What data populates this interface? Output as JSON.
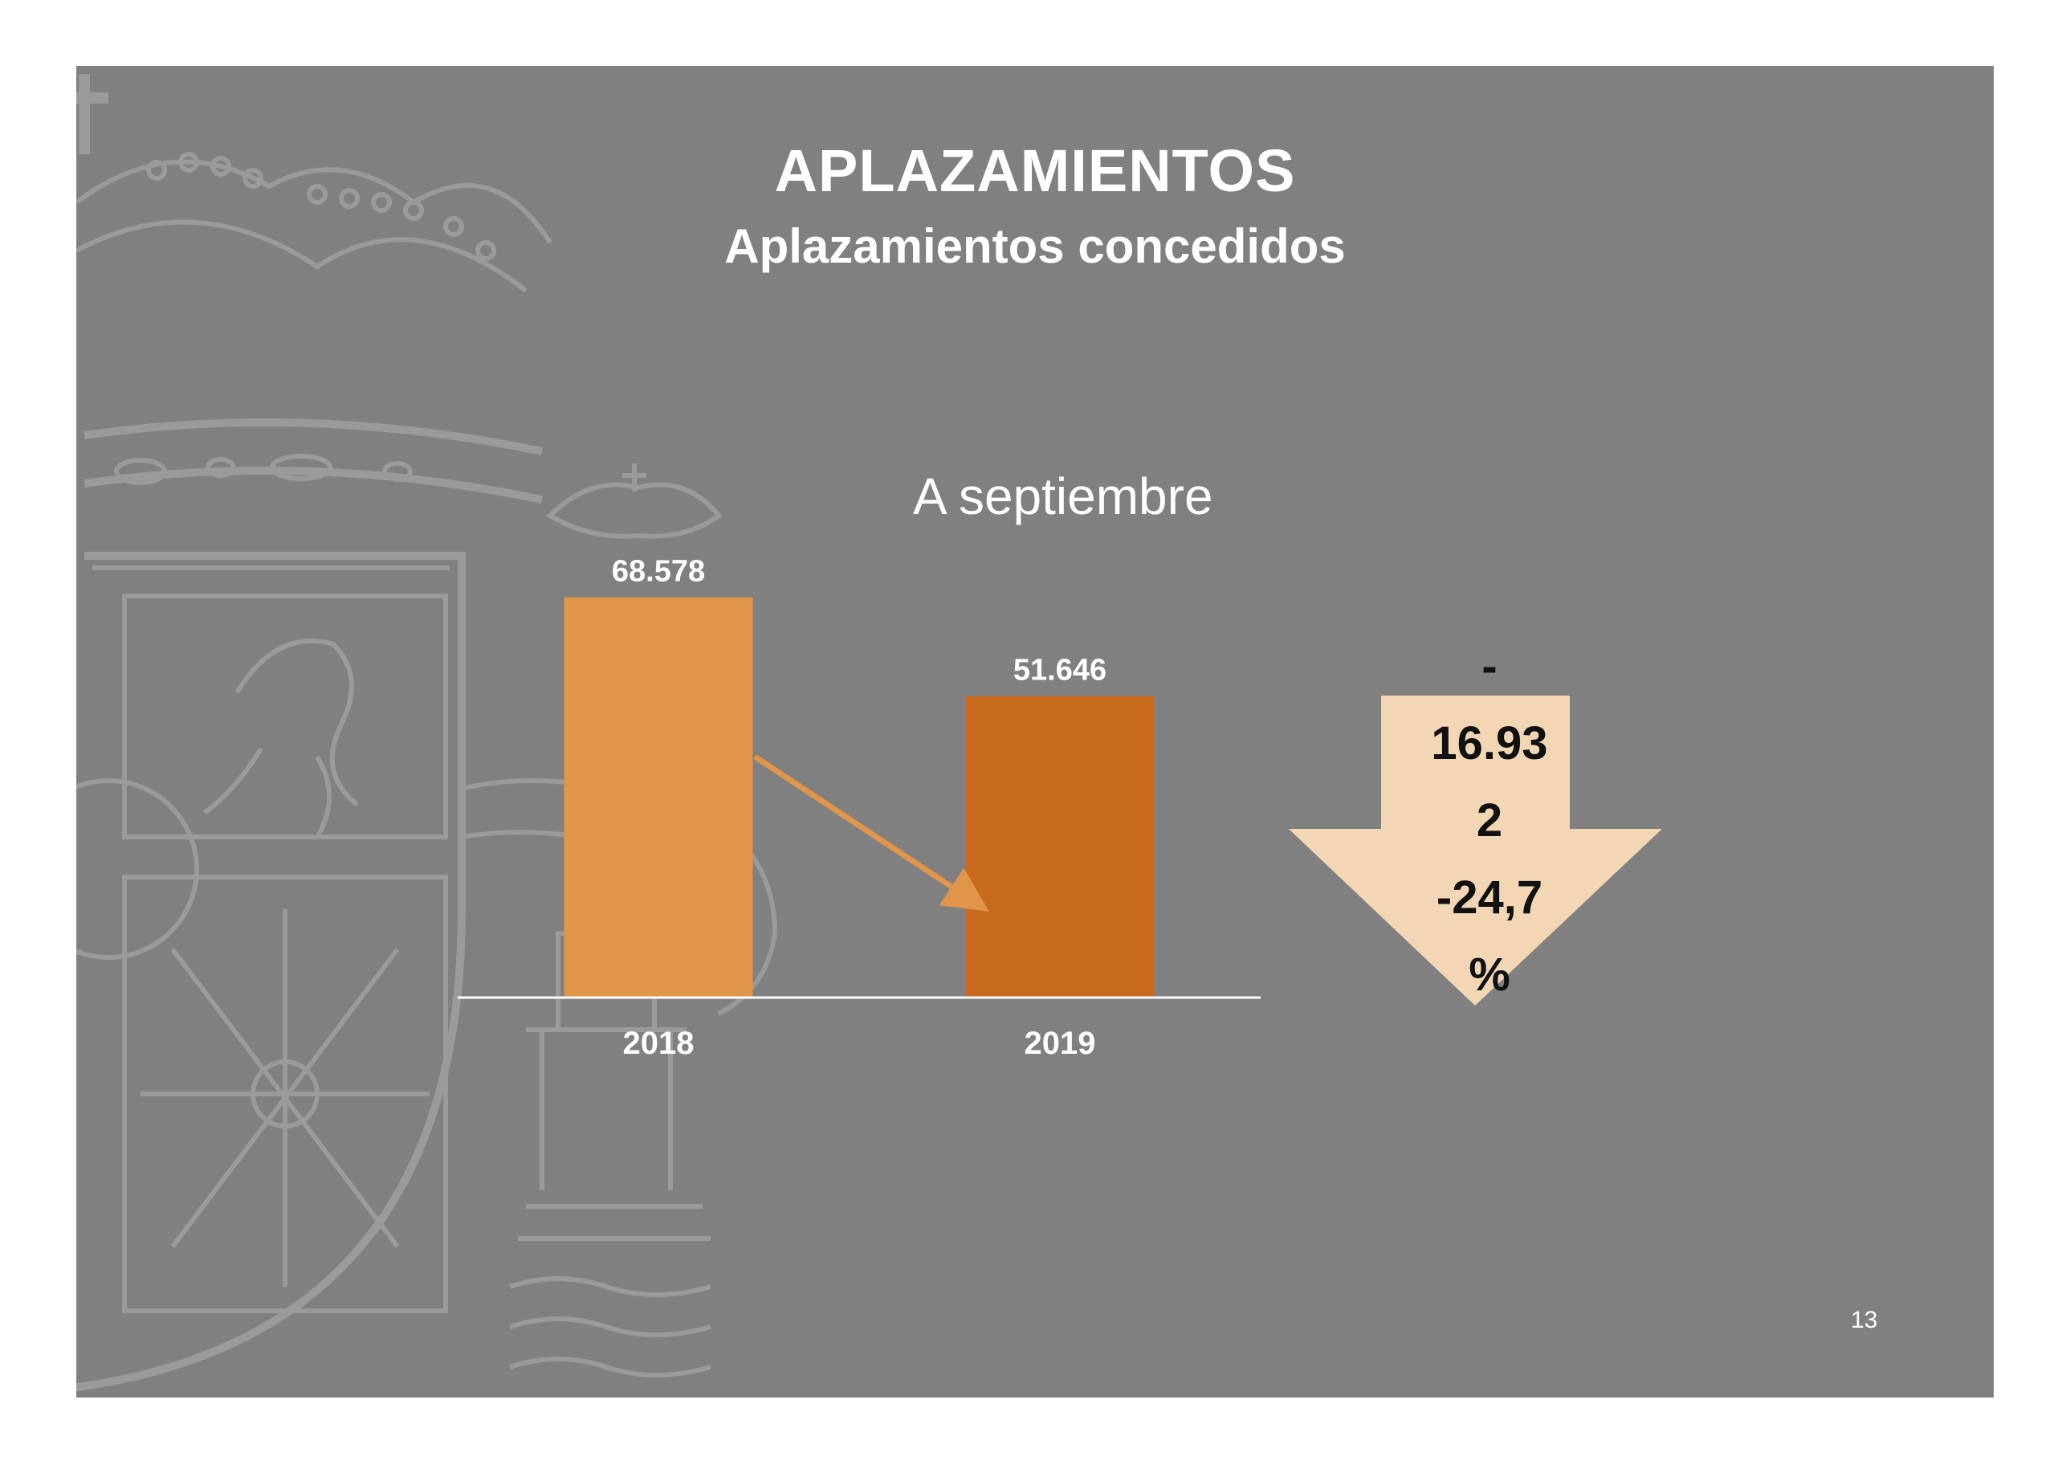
{
  "slide": {
    "title": "APLAZAMIENTOS",
    "subtitle": "Aplazamientos concedidos",
    "note": "A septiembre",
    "page_number": "13"
  },
  "change": {
    "sign": "-",
    "absolute_line1": "16.93",
    "absolute_line2": "2",
    "percent_line1": "-24,7",
    "percent_line2": "%"
  },
  "colors": {
    "background": "#808080",
    "bar_2018": "#e0954b",
    "bar_2019": "#c86a1e",
    "trend_arrow": "#e0954b",
    "down_arrow": "#f3d6b4",
    "emblem": "#9a9a9a"
  },
  "icons": {
    "background_emblem": "coat-of-arms-watermark",
    "down_arrow": "down-arrow-icon"
  },
  "chart_data": {
    "type": "bar",
    "categories": [
      "2018",
      "2019"
    ],
    "values": [
      68578,
      51646
    ],
    "value_labels": [
      "68.578",
      "51.646"
    ],
    "ylim": [
      0,
      75000
    ],
    "grid": false
  }
}
